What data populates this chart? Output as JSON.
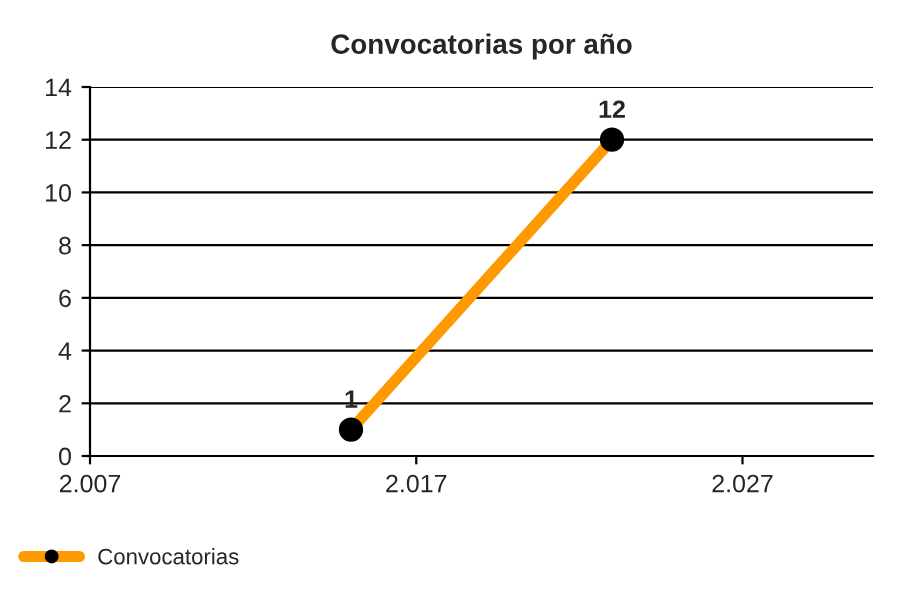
{
  "chart_data": {
    "type": "line",
    "title": "Convocatorias por año",
    "x": [
      2015,
      2023
    ],
    "series": [
      {
        "name": "Convocatorias",
        "color": "#ff9900",
        "values": [
          1,
          12
        ]
      }
    ],
    "xlim": [
      2007,
      2031
    ],
    "xticks": [
      {
        "value": 2007,
        "label": "2.007"
      },
      {
        "value": 2017,
        "label": "2.017"
      },
      {
        "value": 2027,
        "label": "2.027"
      }
    ],
    "ylim": [
      0,
      14
    ],
    "yticks": [
      0,
      2,
      4,
      6,
      8,
      10,
      12,
      14
    ],
    "grid": "y",
    "legend": "bottom left",
    "marker": "circle",
    "line_style": "solid",
    "data_labels": true
  }
}
